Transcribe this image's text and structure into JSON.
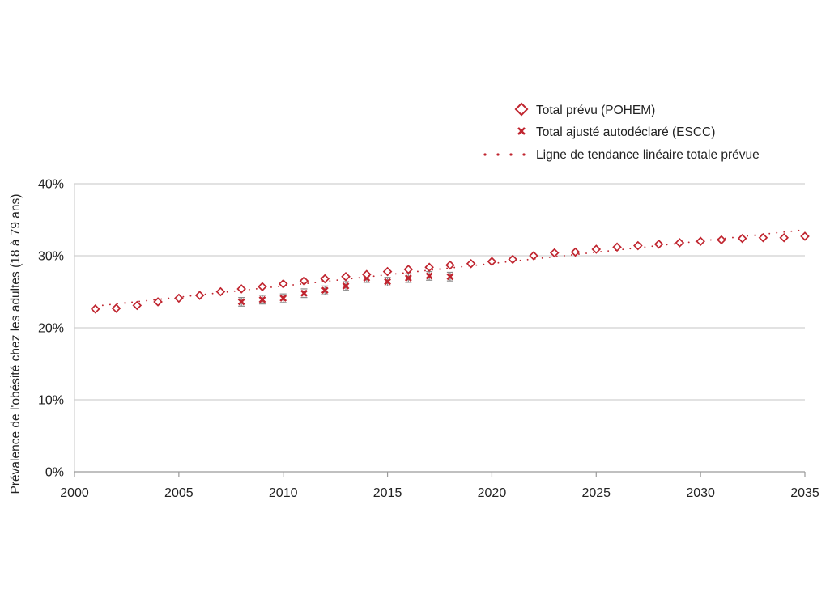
{
  "colors": {
    "series": "#c0252f",
    "grid": "#d0d0d0",
    "axis": "#9a9a9a",
    "error_bar": "#8c8c8c",
    "text": "#222222"
  },
  "chart_data": {
    "type": "scatter",
    "ylabel": "Prévalence de l'obésité chez les adultes (18 à 79 ans)",
    "xlabel": "",
    "xlim": [
      2000,
      2035
    ],
    "ylim": [
      0,
      40
    ],
    "x_ticks": [
      "2000",
      "2005",
      "2010",
      "2015",
      "2020",
      "2025",
      "2030",
      "2035"
    ],
    "y_ticks": [
      "0%",
      "10%",
      "20%",
      "30%",
      "40%"
    ],
    "grid": "horizontal",
    "legend_position": "top-right",
    "series": [
      {
        "name": "Total prévu (POHEM)",
        "marker": "diamond-open",
        "x": [
          2001,
          2002,
          2003,
          2004,
          2005,
          2006,
          2007,
          2008,
          2009,
          2010,
          2011,
          2012,
          2013,
          2014,
          2015,
          2016,
          2017,
          2018,
          2019,
          2020,
          2021,
          2022,
          2023,
          2024,
          2025,
          2026,
          2027,
          2028,
          2029,
          2030,
          2031,
          2032,
          2033,
          2034,
          2035
        ],
        "y": [
          22.6,
          22.7,
          23.1,
          23.6,
          24.1,
          24.5,
          25.0,
          25.4,
          25.7,
          26.1,
          26.5,
          26.8,
          27.1,
          27.4,
          27.8,
          28.1,
          28.4,
          28.7,
          28.9,
          29.2,
          29.5,
          30.0,
          30.4,
          30.5,
          30.9,
          31.2,
          31.4,
          31.6,
          31.8,
          32.0,
          32.2,
          32.4,
          32.5,
          32.5,
          32.7
        ]
      },
      {
        "name": "Total ajusté autodéclaré (ESCC)",
        "marker": "x",
        "x": [
          2008,
          2009,
          2010,
          2011,
          2012,
          2013,
          2014,
          2015,
          2016,
          2017,
          2018
        ],
        "y": [
          23.6,
          23.9,
          24.1,
          24.8,
          25.2,
          25.8,
          26.9,
          26.4,
          26.9,
          27.2,
          27.1
        ],
        "err": [
          0.6,
          0.6,
          0.6,
          0.6,
          0.6,
          0.6,
          0.6,
          0.6,
          0.6,
          0.6,
          0.6
        ]
      },
      {
        "name": "Ligne de tendance linéaire totale prévue",
        "marker": "dotted-line",
        "x": [
          2001,
          2035
        ],
        "y": [
          23.0,
          33.6
        ]
      }
    ]
  }
}
